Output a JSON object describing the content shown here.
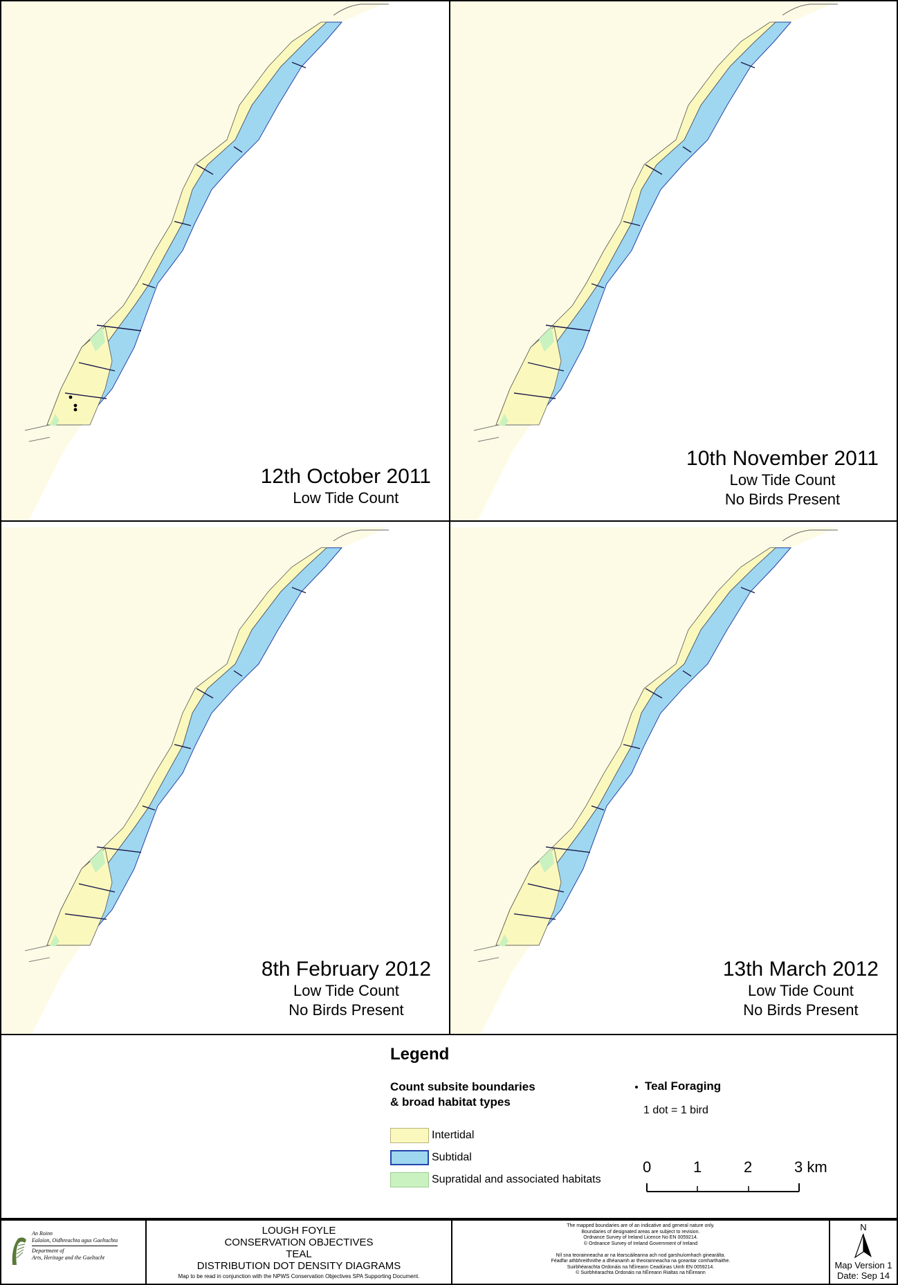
{
  "panels": [
    {
      "date": "12th October 2011",
      "line2": "Low Tide Count",
      "line3": "",
      "teal_dots": 3
    },
    {
      "date": "10th November 2011",
      "line2": "Low Tide Count",
      "line3": "No Birds Present",
      "teal_dots": 0
    },
    {
      "date": "8th February 2012",
      "line2": "Low Tide Count",
      "line3": "No Birds Present",
      "teal_dots": 0
    },
    {
      "date": "13th March 2012",
      "line2": "Low Tide Count",
      "line3": "No Birds Present",
      "teal_dots": 0
    }
  ],
  "legend": {
    "title": "Legend",
    "habitat_heading_1": "Count subsite boundaries",
    "habitat_heading_2": "& broad habitat types",
    "items": [
      {
        "label": "Intertidal",
        "color": "#fbf8be"
      },
      {
        "label": "Subtidal",
        "color": "#9fd7f0"
      },
      {
        "label": "Supratidal and associated habitats",
        "color": "#c9f2c0"
      }
    ],
    "dot_label": "Teal Foraging",
    "dot_note": "1 dot = 1 bird",
    "scale": {
      "ticks": [
        "0",
        "1",
        "2",
        "3 km"
      ]
    }
  },
  "colors": {
    "land": "#fdfbe5",
    "intertidal": "#fbf8be",
    "subtidal": "#9fd7f0",
    "supratidal": "#c9f2c0",
    "boundary": "#2244aa"
  },
  "footer": {
    "logo_lines": [
      "An Roinn",
      "Ealaíon, Oidhreachta agus Gaeltachta",
      "Department of",
      "Arts, Heritage and the Gaeltacht"
    ],
    "title_lines": [
      "LOUGH FOYLE",
      "CONSERVATION OBJECTIVES",
      "TEAL",
      "DISTRIBUTION DOT DENSITY DIAGRAMS"
    ],
    "title_note": "Map to be read in conjunction with the NPWS Conservation Objectives SPA Supporting Document.",
    "disclaimer_lines": [
      "The mapped boundaries are of an indicative and general nature only.",
      "Boundaries of designated areas are subject to revision.",
      "Ordnance Survey of Ireland Licence No EN 0059214.",
      "© Ordnance Survey of Ireland Government of Ireland",
      "",
      "Níl sna teorainneacha ar na léarscáileanna ach nod garshuíomhach ginearálta.",
      "Féadfar athbhreithnithe a dhéanamh ar theorainneacha na gceantar comharthaithe.",
      "Suirbhéarachta Ordonáis na hÉireann Ceadúnas Uimh EN 0059214.",
      "© Suirbhéarachta Ordonáis na hÉireann Rialtas na hÉireann"
    ],
    "north_label": "N",
    "map_version": "Map Version 1",
    "date": "Date: Sep 14"
  }
}
